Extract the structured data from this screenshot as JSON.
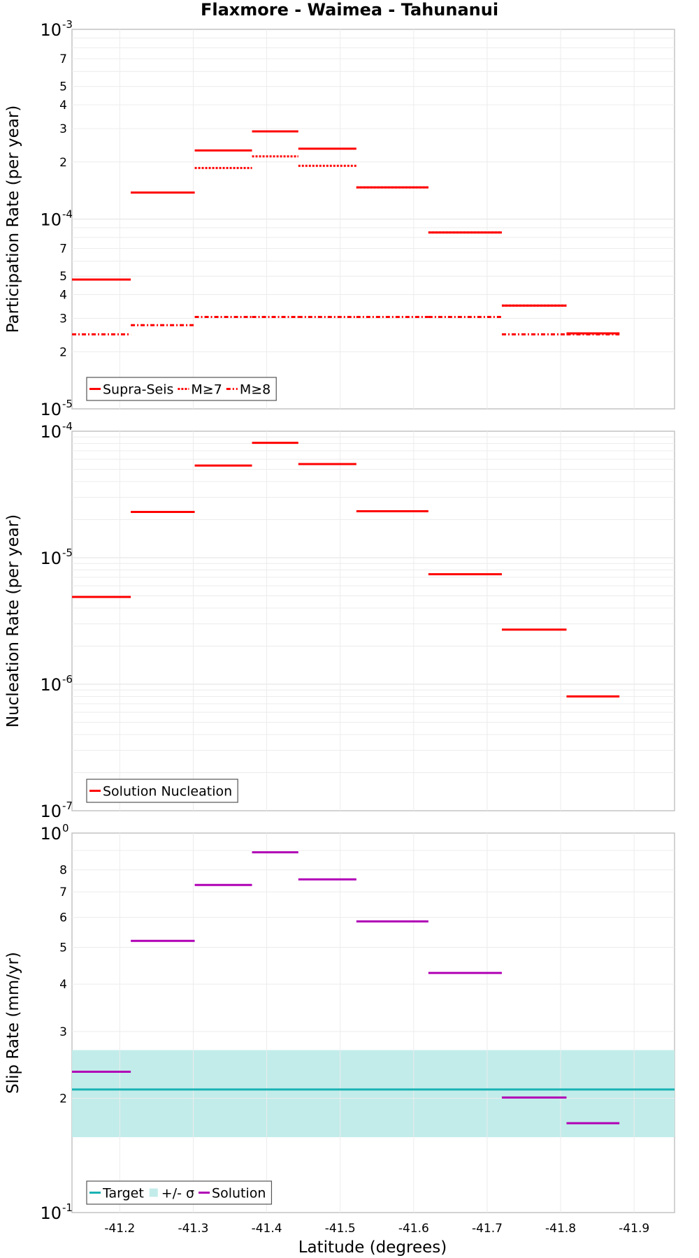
{
  "figure": {
    "title": "Flaxmore - Waimea - Tahunanui",
    "xlabel": "Latitude (degrees)"
  },
  "chart_data": [
    {
      "type": "line",
      "ylabel": "Participation Rate (per year)",
      "yscale": "log",
      "ylim": [
        1e-05,
        0.001
      ],
      "xlim": [
        -41.135,
        -41.955
      ],
      "x_ticks": [
        -41.2,
        -41.3,
        -41.4,
        -41.5,
        -41.6,
        -41.7,
        -41.8,
        -41.9
      ],
      "x_tick_labels": [
        "-41.2",
        "-41.3",
        "-41.4",
        "-41.5",
        "-41.6",
        "-41.7",
        "-41.8",
        "-41.9"
      ],
      "decade_labels": [
        {
          "base": "10",
          "exp": "-5"
        },
        {
          "base": "10",
          "exp": "-4"
        },
        {
          "base": "10",
          "exp": "-3"
        }
      ],
      "minor_tick_labels": [
        "2",
        "3",
        "4",
        "5",
        "7"
      ],
      "grid": true,
      "legend": "bottom-left",
      "bin_edges": [
        -41.135,
        -41.215,
        -41.302,
        -41.38,
        -41.443,
        -41.522,
        -41.62,
        -41.72,
        -41.808,
        -41.88
      ],
      "series": [
        {
          "name": "Supra-Seis",
          "style": "solid",
          "color": "#ff0000",
          "values": [
            4.8e-05,
            0.000138,
            0.00023,
            0.00029,
            0.000235,
            0.000147,
            8.5e-05,
            3.5e-05,
            2.5e-05
          ]
        },
        {
          "name": "M≥7",
          "style": "dotted",
          "color": "#ff0000",
          "values": [
            4.8e-05,
            0.000138,
            0.000186,
            0.000214,
            0.000191,
            0.000147,
            8.5e-05,
            3.5e-05,
            2.5e-05
          ]
        },
        {
          "name": "M≥8",
          "style": "dashdot",
          "color": "#ff0000",
          "values": [
            2.47e-05,
            2.76e-05,
            3.05e-05,
            3.05e-05,
            3.05e-05,
            3.05e-05,
            3.05e-05,
            2.47e-05,
            2.47e-05
          ]
        }
      ]
    },
    {
      "type": "line",
      "ylabel": "Nucleation Rate (per year)",
      "yscale": "log",
      "ylim": [
        1e-07,
        0.0001
      ],
      "xlim": [
        -41.135,
        -41.955
      ],
      "decade_labels": [
        {
          "base": "10",
          "exp": "-7"
        },
        {
          "base": "10",
          "exp": "-6"
        },
        {
          "base": "10",
          "exp": "-5"
        },
        {
          "base": "10",
          "exp": "-4"
        }
      ],
      "grid": true,
      "legend": "bottom-left",
      "bin_edges": [
        -41.135,
        -41.215,
        -41.302,
        -41.38,
        -41.443,
        -41.522,
        -41.62,
        -41.72,
        -41.808,
        -41.88
      ],
      "series": [
        {
          "name": "Solution Nucleation",
          "style": "solid",
          "color": "#ff0000",
          "values": [
            4.9e-06,
            2.3e-05,
            5.35e-05,
            8.1e-05,
            5.5e-05,
            2.33e-05,
            7.4e-06,
            2.7e-06,
            8e-07
          ]
        }
      ]
    },
    {
      "type": "line",
      "ylabel": "Slip Rate (mm/yr)",
      "yscale": "log",
      "ylim": [
        0.1,
        1.0
      ],
      "xlim": [
        -41.135,
        -41.955
      ],
      "decade_labels": [
        {
          "base": "10",
          "exp": "-1"
        },
        {
          "base": "10",
          "exp": "0"
        }
      ],
      "minor_tick_labels": [
        "2",
        "3",
        "4",
        "5",
        "6",
        "7",
        "8"
      ],
      "grid": true,
      "legend": "bottom-left",
      "bin_edges": [
        -41.135,
        -41.215,
        -41.302,
        -41.38,
        -41.443,
        -41.522,
        -41.62,
        -41.72,
        -41.808,
        -41.88
      ],
      "target": {
        "name": "Target",
        "value": 0.211,
        "color": "#1ab3b3"
      },
      "band": {
        "name": "+/- σ",
        "low": 0.158,
        "high": 0.268,
        "color": "#c2ecea"
      },
      "series": [
        {
          "name": "Solution",
          "style": "solid",
          "color": "#b000b5",
          "values": [
            0.235,
            0.52,
            0.73,
            0.89,
            0.755,
            0.585,
            0.428,
            0.201,
            0.172
          ]
        }
      ]
    }
  ]
}
